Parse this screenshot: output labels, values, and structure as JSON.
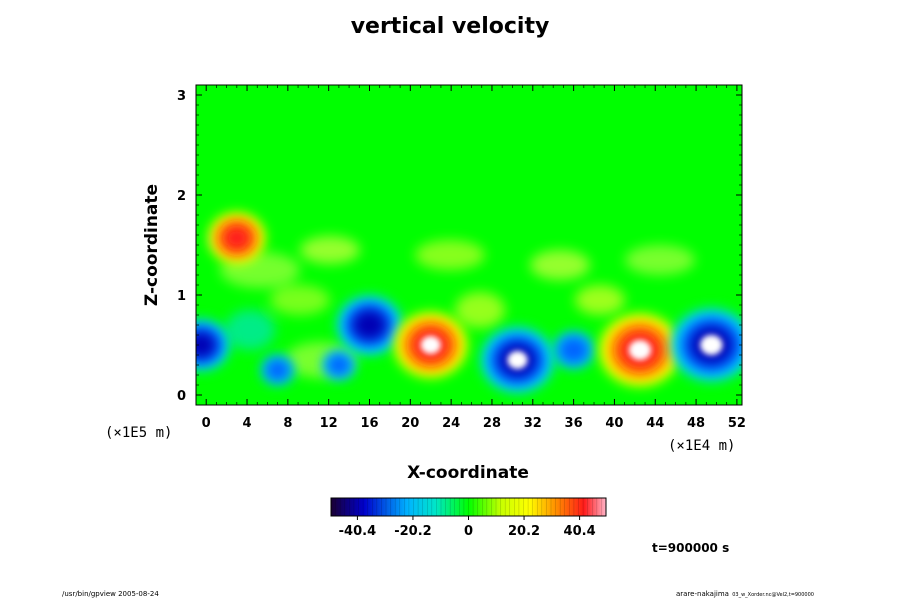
{
  "chart_data": {
    "type": "heatmap",
    "title": "vertical velocity",
    "xlabel": "X-coordinate",
    "ylabel": "Z-coordinate",
    "x_ticks": [
      "0",
      "4",
      "8",
      "12",
      "16",
      "20",
      "24",
      "28",
      "32",
      "36",
      "40",
      "44",
      "48",
      "52"
    ],
    "y_ticks": [
      "0",
      "1",
      "2",
      "3"
    ],
    "x_range": [
      -1,
      52.5
    ],
    "y_range": [
      -0.1,
      3.1
    ],
    "x_scale_label": "(×1E4 m)",
    "y_scale_label": "(×1E5 m)",
    "colorbar": {
      "ticks": [
        "-40.4",
        "-20.2",
        "0",
        "20.2",
        "40.4"
      ],
      "range": [
        -50,
        50
      ]
    },
    "features": [
      {
        "x": -0.5,
        "z": 0.5,
        "value": -35
      },
      {
        "x": 3,
        "z": 1.57,
        "value": 35
      },
      {
        "x": 7,
        "z": 0.25,
        "value": -20
      },
      {
        "x": 13,
        "z": 0.3,
        "value": -20
      },
      {
        "x": 16,
        "z": 0.7,
        "value": -40
      },
      {
        "x": 22,
        "z": 0.5,
        "value": 45
      },
      {
        "x": 30.5,
        "z": 0.35,
        "value": -45
      },
      {
        "x": 36,
        "z": 0.45,
        "value": -25
      },
      {
        "x": 42.5,
        "z": 0.45,
        "value": 50
      },
      {
        "x": 49.5,
        "z": 0.5,
        "value": -50
      }
    ],
    "grid": false
  },
  "annotations": {
    "time_label": "t=900000 s",
    "footer_left": "/usr/bin/gpview 2005-08-24",
    "footer_right": "arare-nakajima",
    "footer_right_small": "03_w_Xorder.nc@Vel2,t=900000"
  }
}
